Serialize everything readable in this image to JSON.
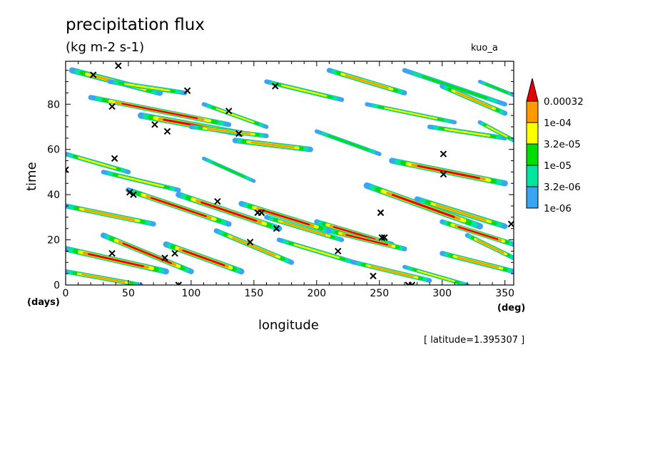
{
  "chart_data": {
    "type": "heatmap",
    "title": "precipitation flux",
    "subtitle": "(kg m-2 s-1)",
    "run_label": "kuo_a",
    "xlabel": "longitude",
    "ylabel": "time",
    "x_unit": "(deg)",
    "y_unit": "(days)",
    "annotation": "[ latitude=1.395307 ]",
    "xlim": [
      0,
      357
    ],
    "ylim": [
      0,
      99
    ],
    "x_ticks": [
      0,
      50,
      100,
      150,
      200,
      250,
      300,
      350
    ],
    "y_ticks": [
      0,
      20,
      40,
      60,
      80
    ],
    "colorbar": {
      "levels": [
        "1e-06",
        "3.2e-06",
        "1e-05",
        "3.2e-05",
        "1e-04",
        "0.00032"
      ],
      "colors": [
        "#3aa6f2",
        "#00e6a0",
        "#00dd00",
        "#ffff00",
        "#ff9900",
        "#e60000"
      ]
    },
    "bands": [
      {
        "lon": 5,
        "t": 95,
        "dlon": 70,
        "dt": -10,
        "w": 2.6,
        "c": 4
      },
      {
        "lon": 20,
        "t": 83,
        "dlon": 110,
        "dt": -12,
        "w": 2.2,
        "c": 5
      },
      {
        "lon": 35,
        "t": 90,
        "dlon": 60,
        "dt": -5,
        "w": 2.0,
        "c": 3
      },
      {
        "lon": 60,
        "t": 75,
        "dlon": 80,
        "dt": -8,
        "w": 2.8,
        "c": 5
      },
      {
        "lon": 100,
        "t": 70,
        "dlon": 60,
        "dt": -4,
        "w": 2.0,
        "c": 4
      },
      {
        "lon": 110,
        "t": 80,
        "dlon": 50,
        "dt": -10,
        "w": 1.8,
        "c": 3
      },
      {
        "lon": 135,
        "t": 64,
        "dlon": 60,
        "dt": -4,
        "w": 2.4,
        "c": 4
      },
      {
        "lon": 160,
        "t": 90,
        "dlon": 60,
        "dt": -8,
        "w": 2.0,
        "c": 3
      },
      {
        "lon": 210,
        "t": 95,
        "dlon": 60,
        "dt": -10,
        "w": 2.2,
        "c": 4
      },
      {
        "lon": 240,
        "t": 80,
        "dlon": 70,
        "dt": -8,
        "w": 1.8,
        "c": 3
      },
      {
        "lon": 270,
        "t": 95,
        "dlon": 80,
        "dt": -15,
        "w": 2.0,
        "c": 2
      },
      {
        "lon": 290,
        "t": 70,
        "dlon": 60,
        "dt": -5,
        "w": 2.0,
        "c": 3
      },
      {
        "lon": 300,
        "t": 88,
        "dlon": 50,
        "dt": -12,
        "w": 2.2,
        "c": 4
      },
      {
        "lon": 260,
        "t": 55,
        "dlon": 90,
        "dt": -10,
        "w": 2.6,
        "c": 5
      },
      {
        "lon": 200,
        "t": 68,
        "dlon": 50,
        "dt": -10,
        "w": 1.8,
        "c": 2
      },
      {
        "lon": 0,
        "t": 58,
        "dlon": 50,
        "dt": -8,
        "w": 2.0,
        "c": 3
      },
      {
        "lon": 30,
        "t": 50,
        "dlon": 60,
        "dt": -8,
        "w": 2.0,
        "c": 3
      },
      {
        "lon": 50,
        "t": 42,
        "dlon": 80,
        "dt": -15,
        "w": 2.4,
        "c": 5
      },
      {
        "lon": 0,
        "t": 35,
        "dlon": 70,
        "dt": -8,
        "w": 2.2,
        "c": 4
      },
      {
        "lon": 90,
        "t": 40,
        "dlon": 80,
        "dt": -15,
        "w": 2.6,
        "c": 5
      },
      {
        "lon": 140,
        "t": 36,
        "dlon": 70,
        "dt": -12,
        "w": 2.4,
        "c": 5
      },
      {
        "lon": 160,
        "t": 30,
        "dlon": 60,
        "dt": -10,
        "w": 2.0,
        "c": 4
      },
      {
        "lon": 200,
        "t": 28,
        "dlon": 60,
        "dt": -10,
        "w": 2.2,
        "c": 5
      },
      {
        "lon": 240,
        "t": 44,
        "dlon": 90,
        "dt": -18,
        "w": 2.8,
        "c": 5
      },
      {
        "lon": 280,
        "t": 38,
        "dlon": 70,
        "dt": -12,
        "w": 2.4,
        "c": 4
      },
      {
        "lon": 300,
        "t": 28,
        "dlon": 57,
        "dt": -10,
        "w": 2.2,
        "c": 5
      },
      {
        "lon": 0,
        "t": 16,
        "dlon": 80,
        "dt": -10,
        "w": 2.6,
        "c": 5
      },
      {
        "lon": 30,
        "t": 22,
        "dlon": 70,
        "dt": -16,
        "w": 2.4,
        "c": 5
      },
      {
        "lon": 80,
        "t": 18,
        "dlon": 60,
        "dt": -12,
        "w": 2.6,
        "c": 5
      },
      {
        "lon": 120,
        "t": 24,
        "dlon": 60,
        "dt": -14,
        "w": 2.2,
        "c": 4
      },
      {
        "lon": 170,
        "t": 20,
        "dlon": 60,
        "dt": -10,
        "w": 2.0,
        "c": 3
      },
      {
        "lon": 210,
        "t": 24,
        "dlon": 60,
        "dt": -8,
        "w": 2.2,
        "c": 5
      },
      {
        "lon": 230,
        "t": 10,
        "dlon": 60,
        "dt": -8,
        "w": 2.0,
        "c": 4
      },
      {
        "lon": 300,
        "t": 14,
        "dlon": 57,
        "dt": -8,
        "w": 2.2,
        "c": 4
      },
      {
        "lon": 320,
        "t": 22,
        "dlon": 37,
        "dt": -10,
        "w": 2.0,
        "c": 4
      },
      {
        "lon": 0,
        "t": 6,
        "dlon": 60,
        "dt": -6,
        "w": 2.0,
        "c": 4
      },
      {
        "lon": 270,
        "t": 8,
        "dlon": 50,
        "dt": -8,
        "w": 1.8,
        "c": 3
      },
      {
        "lon": 330,
        "t": 72,
        "dlon": 27,
        "dt": -8,
        "w": 1.8,
        "c": 3
      },
      {
        "lon": 330,
        "t": 90,
        "dlon": 27,
        "dt": -6,
        "w": 1.6,
        "c": 2
      },
      {
        "lon": 110,
        "t": 56,
        "dlon": 40,
        "dt": -10,
        "w": 1.6,
        "c": 2
      }
    ],
    "markers": [
      [
        22,
        93
      ],
      [
        42,
        97
      ],
      [
        37,
        79
      ],
      [
        97,
        86
      ],
      [
        167,
        88
      ],
      [
        130,
        77
      ],
      [
        71,
        71
      ],
      [
        81,
        68
      ],
      [
        138,
        67
      ],
      [
        39,
        56
      ],
      [
        301,
        58
      ],
      [
        301,
        49
      ],
      [
        0,
        51
      ],
      [
        51,
        41
      ],
      [
        54,
        40
      ],
      [
        121,
        37
      ],
      [
        153,
        32
      ],
      [
        156,
        32
      ],
      [
        251,
        32
      ],
      [
        168,
        25
      ],
      [
        147,
        19
      ],
      [
        252,
        21
      ],
      [
        254,
        21
      ],
      [
        217,
        15
      ],
      [
        37,
        14
      ],
      [
        87,
        14
      ],
      [
        79,
        12
      ],
      [
        245,
        4
      ],
      [
        90,
        0
      ],
      [
        273,
        0
      ],
      [
        276,
        0
      ],
      [
        355,
        27
      ]
    ]
  }
}
